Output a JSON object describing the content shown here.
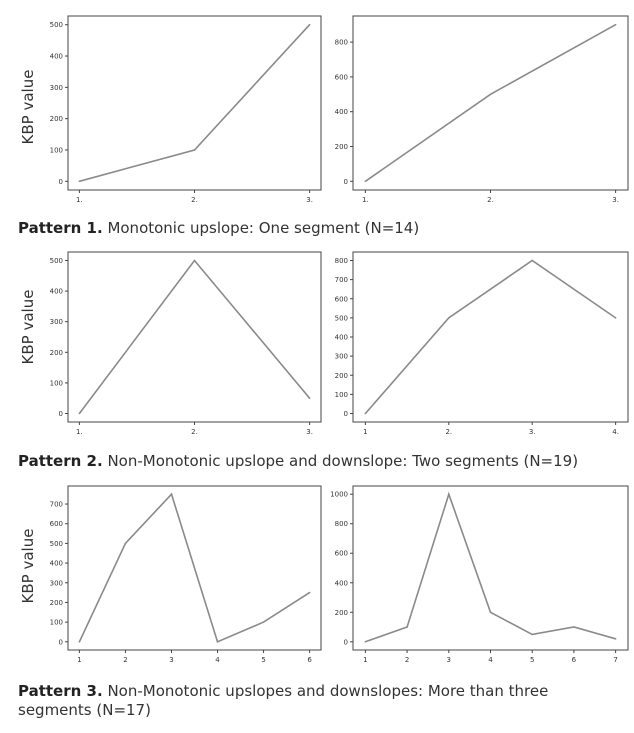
{
  "rows": [
    {
      "ylabel": "KBP value",
      "caption": {
        "bold": "Pattern 1.",
        "text": " Monotonic upslope: One segment (N=14)"
      }
    },
    {
      "ylabel": "KBP value",
      "caption": {
        "bold": "Pattern 2.",
        "text": " Non-Monotonic upslope and downslope: Two segments  (N=19)"
      }
    },
    {
      "ylabel": "KBP value",
      "caption": {
        "bold": "Pattern 3.",
        "text": " Non-Monotonic upslopes and downslopes: More than three segments  (N=17)"
      }
    }
  ],
  "line_color": "#8a8a8a",
  "chart_data": [
    {
      "type": "line",
      "x": [
        1,
        2,
        3
      ],
      "xticks": [
        "1.",
        "2.",
        "3."
      ],
      "y": [
        0,
        100,
        500
      ],
      "ylim": [
        0,
        500
      ],
      "yticks": [
        0,
        100,
        200,
        300,
        400,
        500
      ]
    },
    {
      "type": "line",
      "x": [
        1,
        2,
        3
      ],
      "xticks": [
        "1.",
        "2.",
        "3."
      ],
      "y": [
        0,
        500,
        900
      ],
      "ylim": [
        0,
        900
      ],
      "yticks": [
        0,
        200,
        400,
        600,
        800
      ]
    },
    {
      "type": "line",
      "x": [
        1,
        2,
        3
      ],
      "xticks": [
        "1.",
        "2.",
        "3."
      ],
      "y": [
        0,
        500,
        50
      ],
      "ylim": [
        0,
        500
      ],
      "yticks": [
        0,
        100,
        200,
        300,
        400,
        500
      ]
    },
    {
      "type": "line",
      "x": [
        1,
        2,
        3,
        4
      ],
      "xticks": [
        "1",
        "2.",
        "3.",
        "4."
      ],
      "y": [
        0,
        500,
        800,
        500
      ],
      "ylim": [
        0,
        800
      ],
      "yticks": [
        0,
        100,
        200,
        300,
        400,
        500,
        600,
        700,
        800
      ]
    },
    {
      "type": "line",
      "x": [
        1,
        2,
        3,
        4,
        5,
        6
      ],
      "xticks": [
        "1",
        "2",
        "3",
        "4",
        "5",
        "6"
      ],
      "y": [
        0,
        500,
        750,
        0,
        100,
        250
      ],
      "ylim": [
        0,
        750
      ],
      "yticks": [
        0,
        100,
        200,
        300,
        400,
        500,
        600,
        700
      ]
    },
    {
      "type": "line",
      "x": [
        1,
        2,
        3,
        4,
        5,
        6,
        7
      ],
      "xticks": [
        "1",
        "2",
        "3",
        "4",
        "5",
        "6",
        "7"
      ],
      "y": [
        0,
        100,
        1000,
        200,
        50,
        100,
        20
      ],
      "ylim": [
        0,
        1000
      ],
      "yticks": [
        0,
        200,
        400,
        600,
        800,
        1000
      ]
    }
  ]
}
